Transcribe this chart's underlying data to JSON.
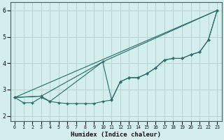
{
  "xlabel": "Humidex (Indice chaleur)",
  "xlim": [
    -0.5,
    23.5
  ],
  "ylim": [
    1.8,
    6.3
  ],
  "xticks": [
    0,
    1,
    2,
    3,
    4,
    5,
    6,
    7,
    8,
    9,
    10,
    11,
    12,
    13,
    14,
    15,
    16,
    17,
    18,
    19,
    20,
    21,
    22,
    23
  ],
  "yticks": [
    2,
    3,
    4,
    5,
    6
  ],
  "background_color": "#d4eeed",
  "grid_color": "#b8d4d2",
  "line_color": "#256b68",
  "line1_x": [
    0,
    1,
    2,
    3,
    4,
    5,
    6,
    7,
    8,
    9,
    10,
    11,
    12,
    13,
    14,
    15,
    16,
    17,
    18,
    19,
    20,
    21,
    22,
    23
  ],
  "line1_y": [
    2.7,
    2.5,
    2.5,
    2.7,
    2.55,
    2.5,
    2.47,
    2.47,
    2.47,
    2.47,
    2.55,
    2.6,
    3.3,
    3.45,
    3.45,
    3.6,
    3.82,
    4.12,
    4.18,
    4.18,
    4.32,
    4.42,
    4.88,
    6.0
  ],
  "line2_x": [
    0,
    3,
    10,
    23
  ],
  "line2_y": [
    2.7,
    2.75,
    4.05,
    6.0
  ],
  "line3_x": [
    0,
    3,
    4,
    10,
    11,
    12,
    13,
    14,
    15,
    16,
    17,
    18,
    19,
    20,
    21,
    22,
    23
  ],
  "line3_y": [
    2.7,
    2.75,
    2.55,
    4.05,
    2.62,
    3.3,
    3.45,
    3.45,
    3.6,
    3.82,
    4.12,
    4.18,
    4.18,
    4.32,
    4.42,
    4.88,
    6.0
  ],
  "line4_x": [
    0,
    23
  ],
  "line4_y": [
    2.7,
    6.0
  ]
}
